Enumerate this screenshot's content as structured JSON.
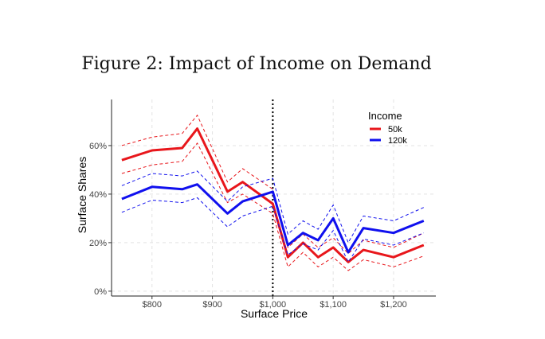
{
  "chart_data": {
    "type": "line",
    "title": "Figure 2: Impact of Income on Demand",
    "xlabel": "Surface Price",
    "ylabel": "Surface Shares",
    "x": [
      750,
      800,
      850,
      875,
      925,
      950,
      1000,
      1025,
      1050,
      1075,
      1100,
      1125,
      1150,
      1200,
      1250
    ],
    "xlim": [
      733,
      1270
    ],
    "ylim": [
      -2,
      79
    ],
    "xticks": [
      800,
      900,
      1000,
      1100,
      1200
    ],
    "xtick_labels": [
      "$800",
      "$900",
      "$1,000",
      "$1,100",
      "$1,200"
    ],
    "yticks": [
      0,
      20,
      40,
      60
    ],
    "ytick_labels": [
      "0%",
      "20%",
      "40%",
      "60%"
    ],
    "vline": 1000,
    "grid": true,
    "legend_title": "Income",
    "legend_position": "top-right",
    "series": [
      {
        "name": "50k",
        "color": "#e8161b",
        "values": [
          54,
          58,
          59,
          67,
          41,
          45,
          36,
          14,
          20,
          14,
          18,
          12,
          17,
          14,
          19
        ],
        "upper": [
          60,
          63.5,
          65,
          72.5,
          45,
          50.5,
          42,
          18,
          23.5,
          18,
          22,
          15.5,
          21,
          18,
          24
        ],
        "lower": [
          48.5,
          52,
          53.5,
          61,
          36.5,
          40,
          32,
          10,
          16,
          10,
          14,
          8.5,
          13,
          10,
          14.5
        ]
      },
      {
        "name": "120k",
        "color": "#1010ee",
        "values": [
          38,
          43,
          42,
          44,
          32,
          37,
          41,
          19,
          24,
          21,
          30,
          16,
          26,
          24,
          29
        ],
        "upper": [
          43.5,
          48.5,
          47.5,
          49.5,
          37,
          43,
          46.5,
          23.5,
          29,
          25.5,
          35.5,
          20,
          31,
          29,
          34.5
        ],
        "lower": [
          32.5,
          37.5,
          36.5,
          38.5,
          26.5,
          31,
          35,
          15,
          19.5,
          17,
          25,
          12,
          21.5,
          19,
          24
        ]
      }
    ]
  }
}
